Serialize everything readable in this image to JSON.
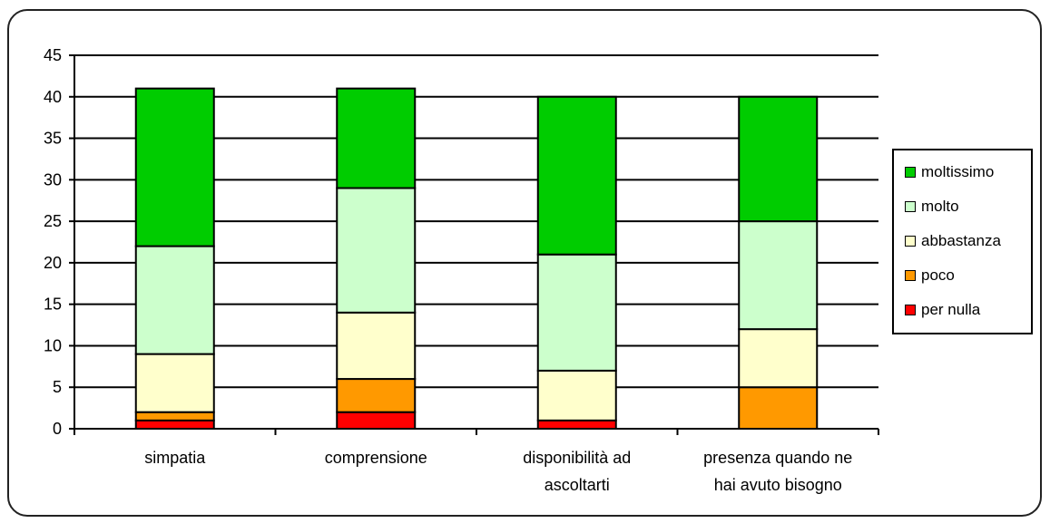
{
  "chart_data": {
    "type": "bar",
    "stacked": true,
    "categories": [
      [
        "simpatia"
      ],
      [
        "comprensione"
      ],
      [
        "disponibilità ad",
        "ascoltarti"
      ],
      [
        "presenza quando ne",
        "hai avuto bisogno"
      ]
    ],
    "series": [
      {
        "name": "per nulla",
        "color": "#ff0000",
        "values": [
          1,
          2,
          1,
          0
        ]
      },
      {
        "name": "poco",
        "color": "#ff9900",
        "values": [
          1,
          4,
          0,
          5
        ]
      },
      {
        "name": "abbastanza",
        "color": "#ffffcc",
        "values": [
          7,
          8,
          6,
          7
        ]
      },
      {
        "name": "molto",
        "color": "#ccffcc",
        "values": [
          13,
          15,
          14,
          13
        ]
      },
      {
        "name": "moltissimo",
        "color": "#00cc00",
        "values": [
          19,
          12,
          19,
          15
        ]
      }
    ],
    "ylim": [
      0,
      45
    ],
    "yticks": [
      0,
      5,
      10,
      15,
      20,
      25,
      30,
      35,
      40,
      45
    ],
    "grid": true,
    "legend_position": "right"
  }
}
